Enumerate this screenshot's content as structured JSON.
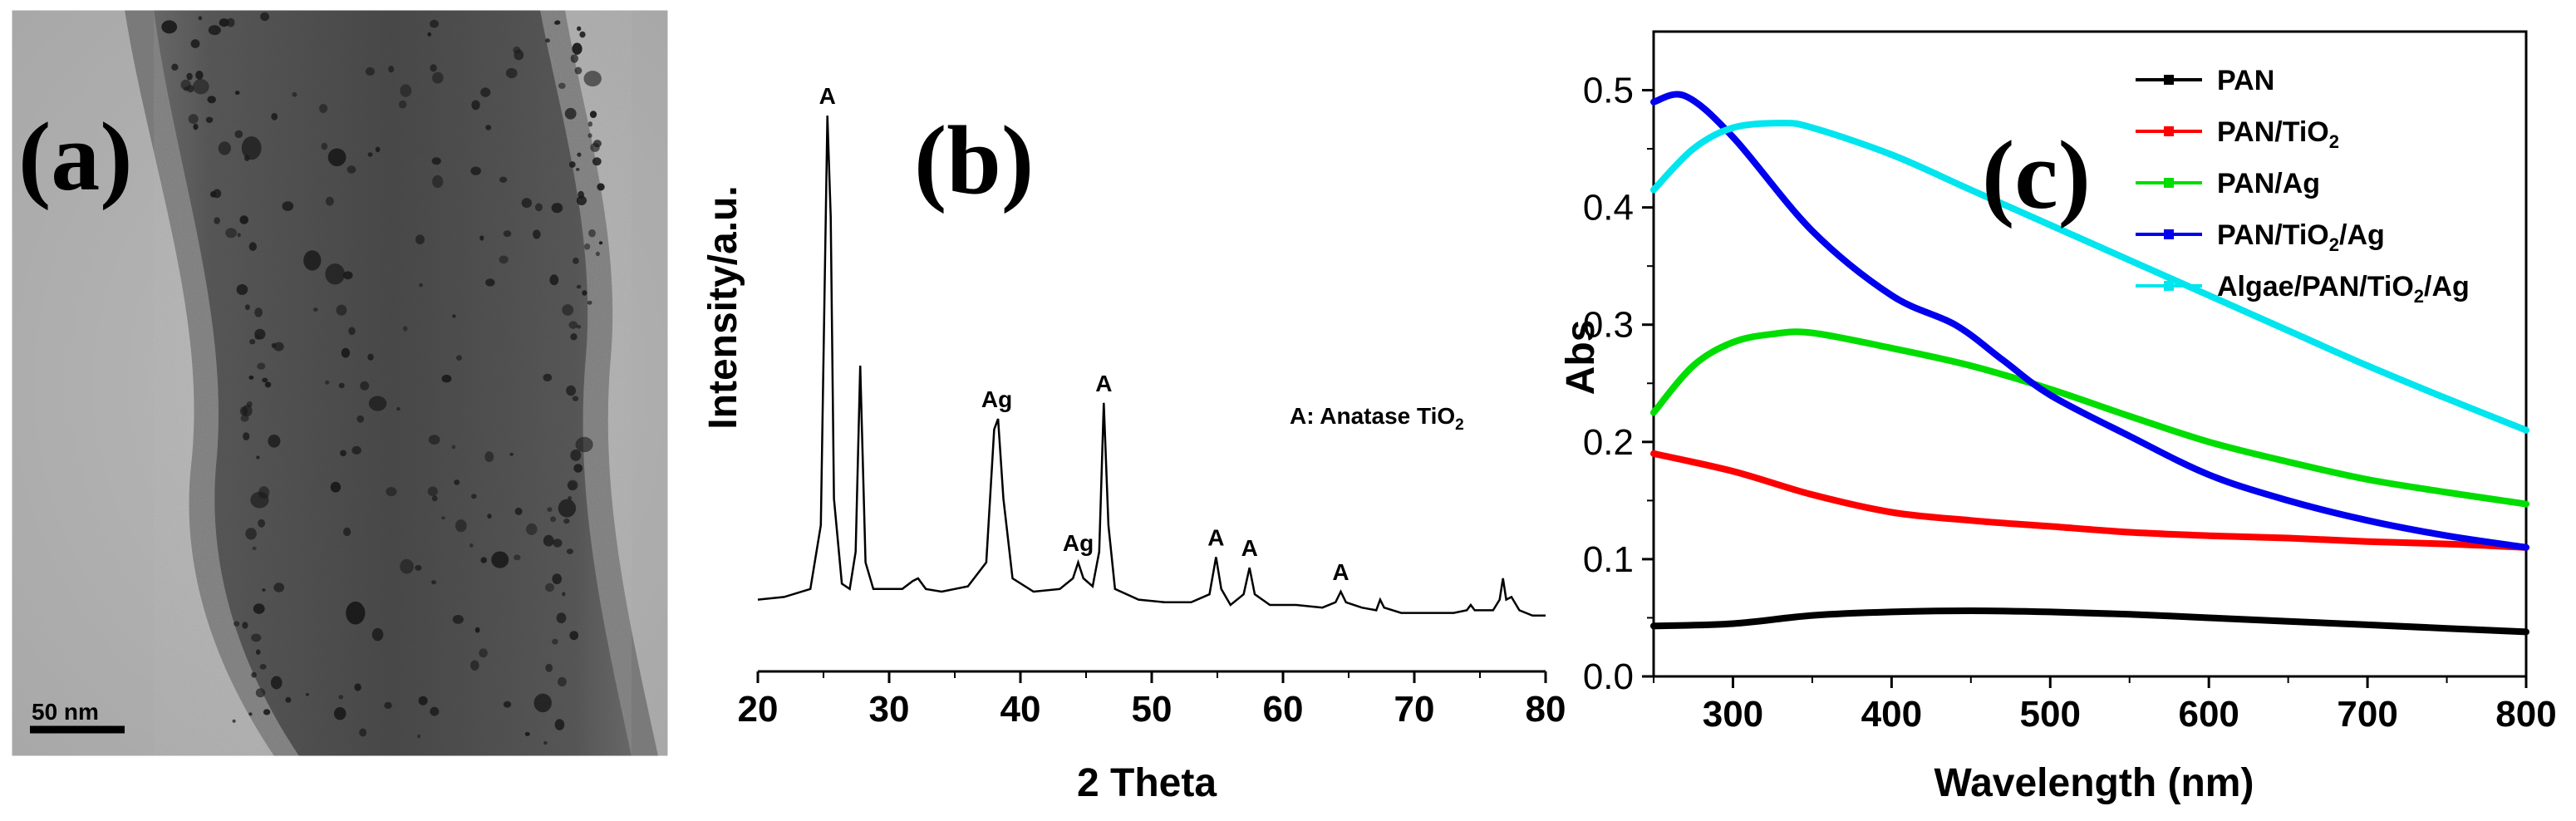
{
  "panel_a": {
    "label": "(a)",
    "scale_bar_label": "50 nm"
  },
  "chart_data": [
    {
      "type": "line",
      "panel_label": "(b)",
      "xlabel": "2 Theta",
      "ylabel": "Intensity/a.u.",
      "xlim": [
        20,
        80
      ],
      "xticks": [
        20,
        30,
        40,
        50,
        60,
        70,
        80
      ],
      "y_ticks_shown": false,
      "legend_note": "A: Anatase TiO",
      "legend_note_subscript": "2",
      "series": [
        {
          "color": "#000000",
          "x": [
            20,
            22,
            24,
            24.8,
            25.3,
            25.55,
            25.8,
            26.4,
            27.0,
            27.45,
            27.8,
            28.2,
            28.8,
            30,
            31,
            31.8,
            32.2,
            32.8,
            34,
            36,
            37.4,
            38.0,
            38.3,
            38.7,
            39.4,
            41,
            43,
            44.0,
            44.4,
            44.8,
            45.5,
            46.0,
            46.35,
            46.7,
            47.2,
            49,
            51,
            53,
            54.4,
            54.9,
            55.3,
            56,
            57.0,
            57.45,
            57.85,
            59,
            61,
            63,
            64.0,
            64.4,
            64.8,
            66,
            67.1,
            67.4,
            67.7,
            69,
            71,
            73,
            74.0,
            74.3,
            74.6,
            76,
            76.5,
            76.75,
            77.0,
            77.4,
            78,
            79,
            80
          ],
          "y": [
            0.06,
            0.065,
            0.08,
            0.2,
            0.97,
            0.78,
            0.25,
            0.09,
            0.08,
            0.15,
            0.5,
            0.13,
            0.08,
            0.08,
            0.08,
            0.095,
            0.1,
            0.08,
            0.075,
            0.085,
            0.13,
            0.38,
            0.4,
            0.25,
            0.1,
            0.075,
            0.08,
            0.1,
            0.13,
            0.1,
            0.085,
            0.15,
            0.43,
            0.2,
            0.08,
            0.06,
            0.055,
            0.055,
            0.07,
            0.14,
            0.08,
            0.05,
            0.07,
            0.12,
            0.07,
            0.05,
            0.05,
            0.045,
            0.055,
            0.075,
            0.055,
            0.045,
            0.04,
            0.06,
            0.045,
            0.035,
            0.035,
            0.035,
            0.04,
            0.05,
            0.04,
            0.04,
            0.06,
            0.1,
            0.06,
            0.065,
            0.04,
            0.03,
            0.03
          ]
        }
      ],
      "annotations": [
        {
          "text": "A",
          "x": 25.3,
          "y": 0.97
        },
        {
          "text": "Ag",
          "x": 38.2,
          "y": 0.4
        },
        {
          "text": "Ag",
          "x": 44.4,
          "y": 0.13
        },
        {
          "text": "A",
          "x": 46.35,
          "y": 0.43
        },
        {
          "text": "A",
          "x": 54.9,
          "y": 0.14
        },
        {
          "text": "A",
          "x": 57.45,
          "y": 0.12
        },
        {
          "text": "A",
          "x": 64.4,
          "y": 0.075
        }
      ]
    },
    {
      "type": "line",
      "panel_label": "(c)",
      "xlabel": "Wavelength (nm)",
      "ylabel": "Abs",
      "xlim": [
        250,
        800
      ],
      "ylim": [
        0,
        0.55
      ],
      "xticks": [
        300,
        400,
        500,
        600,
        700,
        800
      ],
      "yticks": [
        0.0,
        0.1,
        0.2,
        0.3,
        0.4,
        0.5
      ],
      "ytick_labels": [
        "0.0",
        "0.1",
        "0.2",
        "0.3",
        "0.4",
        "0.5"
      ],
      "legend_position": "top-right",
      "series": [
        {
          "name": "PAN",
          "name_subscript_parts": [
            [
              "PAN",
              false
            ]
          ],
          "color": "#000000",
          "x": [
            250,
            300,
            350,
            400,
            450,
            500,
            550,
            600,
            650,
            700,
            750,
            800
          ],
          "y": [
            0.043,
            0.045,
            0.052,
            0.055,
            0.056,
            0.055,
            0.053,
            0.05,
            0.047,
            0.044,
            0.041,
            0.038
          ]
        },
        {
          "name": "PAN/TiO2",
          "name_subscript_parts": [
            [
              "PAN/TiO",
              false
            ],
            [
              "2",
              true
            ]
          ],
          "color": "#ff0000",
          "x": [
            250,
            300,
            350,
            400,
            450,
            500,
            550,
            600,
            650,
            700,
            750,
            800
          ],
          "y": [
            0.19,
            0.175,
            0.155,
            0.14,
            0.133,
            0.128,
            0.123,
            0.12,
            0.118,
            0.115,
            0.113,
            0.11
          ]
        },
        {
          "name": "PAN/Ag",
          "name_subscript_parts": [
            [
              "PAN/Ag",
              false
            ]
          ],
          "color": "#00dd00",
          "x": [
            250,
            275,
            300,
            325,
            350,
            400,
            450,
            500,
            550,
            600,
            650,
            700,
            750,
            800
          ],
          "y": [
            0.225,
            0.265,
            0.285,
            0.292,
            0.293,
            0.28,
            0.265,
            0.245,
            0.222,
            0.2,
            0.183,
            0.168,
            0.157,
            0.147
          ]
        },
        {
          "name": "PAN/TiO2/Ag",
          "name_subscript_parts": [
            [
              "PAN/TiO",
              false
            ],
            [
              "2",
              true
            ],
            [
              "/Ag",
              false
            ]
          ],
          "color": "#0000ee",
          "x": [
            250,
            270,
            300,
            350,
            400,
            440,
            470,
            500,
            550,
            600,
            650,
            700,
            750,
            800
          ],
          "y": [
            0.49,
            0.495,
            0.46,
            0.38,
            0.325,
            0.3,
            0.27,
            0.24,
            0.205,
            0.172,
            0.15,
            0.133,
            0.12,
            0.11
          ]
        },
        {
          "name": "Algae/PAN/TiO2/Ag",
          "name_subscript_parts": [
            [
              "Algae/PAN/TiO",
              false
            ],
            [
              "2",
              true
            ],
            [
              "/Ag",
              false
            ]
          ],
          "color": "#00e5ee",
          "x": [
            250,
            275,
            300,
            330,
            350,
            400,
            450,
            500,
            550,
            600,
            650,
            700,
            750,
            800
          ],
          "y": [
            0.415,
            0.45,
            0.468,
            0.472,
            0.468,
            0.445,
            0.415,
            0.385,
            0.355,
            0.325,
            0.295,
            0.265,
            0.237,
            0.21
          ]
        }
      ]
    }
  ]
}
